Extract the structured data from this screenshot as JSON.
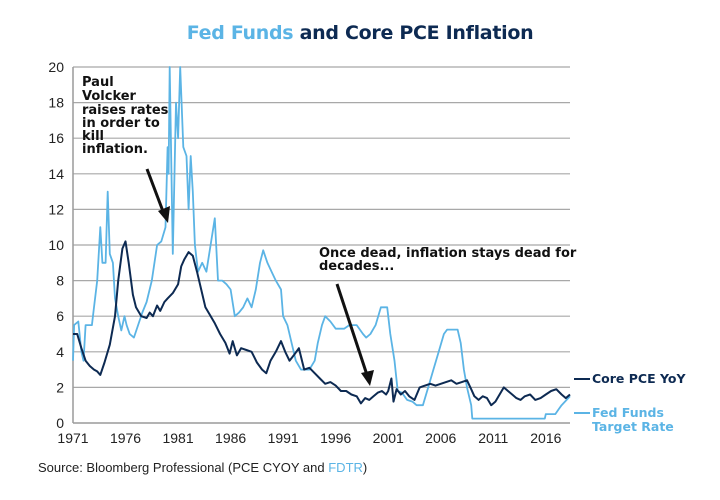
{
  "chart_data": {
    "type": "line",
    "title_part1": "Fed Funds",
    "title_part2": " and Core PCE Inflation",
    "xlabel": "",
    "ylabel": "",
    "xlim": [
      1971,
      2018.3
    ],
    "ylim": [
      0,
      20
    ],
    "grid": true,
    "x_ticks": [
      "1971",
      "1976",
      "1981",
      "1986",
      "1991",
      "1996",
      "2001",
      "2006",
      "2011",
      "2016"
    ],
    "y_ticks": [
      "0",
      "2",
      "4",
      "6",
      "8",
      "10",
      "12",
      "14",
      "16",
      "18",
      "20"
    ],
    "legend_placement": "right",
    "series": [
      {
        "name": "Core PCE YoY",
        "color": "#0d2a52",
        "points": [
          [
            1971.0,
            5.0
          ],
          [
            1971.4,
            5.0
          ],
          [
            1971.8,
            4.2
          ],
          [
            1972.2,
            3.5
          ],
          [
            1972.6,
            3.2
          ],
          [
            1973.0,
            3.0
          ],
          [
            1973.3,
            2.9
          ],
          [
            1973.6,
            2.7
          ],
          [
            1974.0,
            3.4
          ],
          [
            1974.5,
            4.4
          ],
          [
            1975.0,
            6.0
          ],
          [
            1975.3,
            8.0
          ],
          [
            1975.7,
            9.8
          ],
          [
            1976.0,
            10.2
          ],
          [
            1976.3,
            9.0
          ],
          [
            1976.7,
            7.2
          ],
          [
            1977.0,
            6.5
          ],
          [
            1977.5,
            6.0
          ],
          [
            1978.0,
            5.9
          ],
          [
            1978.3,
            6.2
          ],
          [
            1978.6,
            6.0
          ],
          [
            1979.0,
            6.6
          ],
          [
            1979.3,
            6.3
          ],
          [
            1979.7,
            6.8
          ],
          [
            1980.0,
            7.0
          ],
          [
            1980.5,
            7.3
          ],
          [
            1981.0,
            7.8
          ],
          [
            1981.3,
            8.8
          ],
          [
            1981.6,
            9.2
          ],
          [
            1982.0,
            9.6
          ],
          [
            1982.4,
            9.4
          ],
          [
            1982.8,
            8.5
          ],
          [
            1983.2,
            7.5
          ],
          [
            1983.6,
            6.5
          ],
          [
            1984.0,
            6.1
          ],
          [
            1984.5,
            5.6
          ],
          [
            1985.0,
            5.0
          ],
          [
            1985.5,
            4.5
          ],
          [
            1985.9,
            3.9
          ],
          [
            1986.2,
            4.6
          ],
          [
            1986.6,
            3.8
          ],
          [
            1987.0,
            4.2
          ],
          [
            1987.5,
            4.1
          ],
          [
            1988.0,
            4.0
          ],
          [
            1988.5,
            3.4
          ],
          [
            1989.0,
            3.0
          ],
          [
            1989.4,
            2.8
          ],
          [
            1989.8,
            3.5
          ],
          [
            1990.3,
            4.0
          ],
          [
            1990.8,
            4.6
          ],
          [
            1991.2,
            4.0
          ],
          [
            1991.6,
            3.5
          ],
          [
            1992.0,
            3.8
          ],
          [
            1992.5,
            4.2
          ],
          [
            1993.0,
            3.0
          ],
          [
            1993.5,
            3.1
          ],
          [
            1994.0,
            2.8
          ],
          [
            1994.5,
            2.5
          ],
          [
            1995.0,
            2.2
          ],
          [
            1995.5,
            2.3
          ],
          [
            1996.0,
            2.1
          ],
          [
            1996.5,
            1.8
          ],
          [
            1997.0,
            1.8
          ],
          [
            1997.5,
            1.6
          ],
          [
            1998.0,
            1.5
          ],
          [
            1998.4,
            1.1
          ],
          [
            1998.8,
            1.4
          ],
          [
            1999.2,
            1.3
          ],
          [
            1999.6,
            1.5
          ],
          [
            2000.0,
            1.7
          ],
          [
            2000.4,
            1.8
          ],
          [
            2000.8,
            1.6
          ],
          [
            2001.0,
            1.8
          ],
          [
            2001.3,
            2.5
          ],
          [
            2001.5,
            1.2
          ],
          [
            2001.8,
            1.9
          ],
          [
            2002.2,
            1.6
          ],
          [
            2002.6,
            1.8
          ],
          [
            2003.0,
            1.5
          ],
          [
            2003.5,
            1.3
          ],
          [
            2004.0,
            2.0
          ],
          [
            2004.5,
            2.1
          ],
          [
            2005.0,
            2.2
          ],
          [
            2005.5,
            2.1
          ],
          [
            2006.0,
            2.2
          ],
          [
            2006.5,
            2.3
          ],
          [
            2007.0,
            2.4
          ],
          [
            2007.5,
            2.2
          ],
          [
            2008.0,
            2.3
          ],
          [
            2008.5,
            2.4
          ],
          [
            2008.9,
            1.9
          ],
          [
            2009.2,
            1.5
          ],
          [
            2009.6,
            1.3
          ],
          [
            2010.0,
            1.5
          ],
          [
            2010.4,
            1.4
          ],
          [
            2010.8,
            1.0
          ],
          [
            2011.2,
            1.2
          ],
          [
            2011.6,
            1.6
          ],
          [
            2012.0,
            2.0
          ],
          [
            2012.4,
            1.8
          ],
          [
            2012.8,
            1.6
          ],
          [
            2013.2,
            1.4
          ],
          [
            2013.6,
            1.3
          ],
          [
            2014.0,
            1.5
          ],
          [
            2014.5,
            1.6
          ],
          [
            2015.0,
            1.3
          ],
          [
            2015.5,
            1.4
          ],
          [
            2016.0,
            1.6
          ],
          [
            2016.5,
            1.8
          ],
          [
            2017.0,
            1.9
          ],
          [
            2017.5,
            1.6
          ],
          [
            2017.9,
            1.4
          ],
          [
            2018.3,
            1.6
          ]
        ]
      },
      {
        "name": "Fed Funds Target Rate",
        "color": "#5bb4e5",
        "points": [
          [
            1971.0,
            3.5
          ],
          [
            1971.1,
            5.5
          ],
          [
            1971.5,
            5.7
          ],
          [
            1971.8,
            4.0
          ],
          [
            1972.0,
            3.5
          ],
          [
            1972.2,
            5.5
          ],
          [
            1972.8,
            5.5
          ],
          [
            1973.0,
            6.5
          ],
          [
            1973.3,
            8.0
          ],
          [
            1973.6,
            11.0
          ],
          [
            1973.8,
            9.0
          ],
          [
            1974.1,
            9.0
          ],
          [
            1974.3,
            13.0
          ],
          [
            1974.5,
            9.5
          ],
          [
            1974.8,
            9.0
          ],
          [
            1975.0,
            7.0
          ],
          [
            1975.3,
            6.0
          ],
          [
            1975.6,
            5.2
          ],
          [
            1975.9,
            6.0
          ],
          [
            1976.1,
            5.5
          ],
          [
            1976.4,
            5.0
          ],
          [
            1976.8,
            4.8
          ],
          [
            1977.2,
            5.5
          ],
          [
            1977.6,
            6.2
          ],
          [
            1978.0,
            6.8
          ],
          [
            1978.5,
            8.0
          ],
          [
            1979.0,
            10.0
          ],
          [
            1979.4,
            10.2
          ],
          [
            1979.8,
            11.0
          ],
          [
            1980.0,
            15.5
          ],
          [
            1980.1,
            14.0
          ],
          [
            1980.2,
            20.0
          ],
          [
            1980.5,
            9.5
          ],
          [
            1980.8,
            18.0
          ],
          [
            1981.0,
            16.0
          ],
          [
            1981.2,
            20.0
          ],
          [
            1981.5,
            15.5
          ],
          [
            1981.8,
            15.0
          ],
          [
            1982.0,
            12.0
          ],
          [
            1982.2,
            15.0
          ],
          [
            1982.4,
            13.0
          ],
          [
            1982.6,
            10.0
          ],
          [
            1982.9,
            8.5
          ],
          [
            1983.3,
            9.0
          ],
          [
            1983.7,
            8.5
          ],
          [
            1984.1,
            10.0
          ],
          [
            1984.5,
            11.5
          ],
          [
            1984.8,
            8.0
          ],
          [
            1985.2,
            8.0
          ],
          [
            1985.6,
            7.8
          ],
          [
            1986.0,
            7.5
          ],
          [
            1986.4,
            6.0
          ],
          [
            1986.8,
            6.2
          ],
          [
            1987.2,
            6.5
          ],
          [
            1987.6,
            7.0
          ],
          [
            1988.0,
            6.5
          ],
          [
            1988.4,
            7.5
          ],
          [
            1988.8,
            9.0
          ],
          [
            1989.1,
            9.7
          ],
          [
            1989.5,
            9.0
          ],
          [
            1989.9,
            8.5
          ],
          [
            1990.3,
            8.0
          ],
          [
            1990.8,
            7.5
          ],
          [
            1991.0,
            6.0
          ],
          [
            1991.4,
            5.5
          ],
          [
            1991.8,
            4.5
          ],
          [
            1992.2,
            3.5
          ],
          [
            1992.7,
            3.0
          ],
          [
            1993.5,
            3.0
          ],
          [
            1994.0,
            3.5
          ],
          [
            1994.3,
            4.5
          ],
          [
            1994.7,
            5.5
          ],
          [
            1995.0,
            6.0
          ],
          [
            1995.5,
            5.7
          ],
          [
            1996.0,
            5.3
          ],
          [
            1996.8,
            5.3
          ],
          [
            1997.3,
            5.5
          ],
          [
            1998.0,
            5.5
          ],
          [
            1998.6,
            5.0
          ],
          [
            1998.9,
            4.8
          ],
          [
            1999.3,
            5.0
          ],
          [
            1999.8,
            5.5
          ],
          [
            2000.3,
            6.5
          ],
          [
            2000.9,
            6.5
          ],
          [
            2001.2,
            5.0
          ],
          [
            2001.6,
            3.5
          ],
          [
            2001.9,
            1.8
          ],
          [
            2002.3,
            1.7
          ],
          [
            2002.8,
            1.3
          ],
          [
            2003.3,
            1.2
          ],
          [
            2003.7,
            1.0
          ],
          [
            2004.3,
            1.0
          ],
          [
            2004.8,
            2.0
          ],
          [
            2005.3,
            3.0
          ],
          [
            2005.8,
            4.0
          ],
          [
            2006.3,
            5.0
          ],
          [
            2006.6,
            5.25
          ],
          [
            2007.6,
            5.25
          ],
          [
            2007.9,
            4.5
          ],
          [
            2008.2,
            3.0
          ],
          [
            2008.5,
            2.0
          ],
          [
            2008.9,
            1.0
          ],
          [
            2009.0,
            0.25
          ],
          [
            2015.9,
            0.25
          ],
          [
            2016.0,
            0.5
          ],
          [
            2016.9,
            0.5
          ],
          [
            2017.2,
            0.75
          ],
          [
            2017.5,
            1.0
          ],
          [
            2017.9,
            1.25
          ],
          [
            2018.3,
            1.5
          ]
        ]
      }
    ],
    "annotations": [
      {
        "lines": [
          "Paul",
          "Volcker",
          "raises rates",
          "in order to",
          "kill",
          "inflation."
        ]
      },
      {
        "lines": [
          "Once dead, inflation stays dead for",
          "decades..."
        ]
      }
    ],
    "legend": [
      {
        "label_lines": [
          "Core PCE YoY"
        ]
      },
      {
        "label_lines": [
          "Fed Funds",
          "Target Rate"
        ]
      }
    ]
  },
  "source": {
    "prefix": "Source: Bloomberg Professional (PCE CYOY and ",
    "highlight": "FDTR",
    "suffix": ")"
  }
}
